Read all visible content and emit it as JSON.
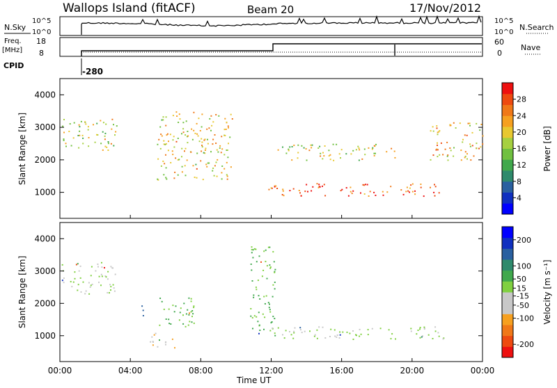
{
  "header": {
    "station": "Wallops Island (fitACF)",
    "beam": "Beam 20",
    "date": "17/Nov/2012"
  },
  "top_panels": {
    "nsky_label": "N.Sky",
    "nsky_ticks": [
      "10^5",
      "10^0"
    ],
    "nsearch_label": "N.Search",
    "nsearch_ticks": [
      "10^5",
      "10^0"
    ],
    "freq_label_1": "Freq.",
    "freq_label_2": "[MHz]",
    "freq_ticks": [
      "18",
      "8"
    ],
    "nave_label": "Nave",
    "nave_ticks": [
      "60",
      "0"
    ],
    "cpid_label": "CPID",
    "cpid_value": "-280"
  },
  "chart_data": [
    {
      "type": "heatmap",
      "title": "",
      "xlabel": "Time UT",
      "ylabel": "Slant Range [km]",
      "xlim_hours": [
        0,
        24
      ],
      "ylim": [
        200,
        4500
      ],
      "y_ticks": [
        "4000",
        "3000",
        "2000",
        "1000"
      ],
      "x_ticks": [
        "00:00",
        "04:00",
        "08:00",
        "12:00",
        "16:00",
        "20:00",
        "00:00"
      ],
      "colorbar_label": "Power [dB]",
      "colorbar_ticks": [
        "28",
        "24",
        "20",
        "16",
        "12",
        "8",
        "4"
      ],
      "colorbar_range": [
        0,
        32
      ],
      "colorscale": [
        "#0000ff",
        "#1030c0",
        "#2a60a0",
        "#2e8a6c",
        "#40a84c",
        "#70c040",
        "#a6d040",
        "#e8c830",
        "#f6a020",
        "#f07818",
        "#ee4a10",
        "#ee1010"
      ],
      "echo_regions": [
        {
          "t0": 0.1,
          "t1": 3.2,
          "r0": 2300,
          "r1": 3300,
          "power": 18
        },
        {
          "t0": 5.5,
          "t1": 9.8,
          "r0": 1400,
          "r1": 3500,
          "power": 20
        },
        {
          "t0": 11.8,
          "t1": 21.8,
          "r0": 900,
          "r1": 1300,
          "power": 28
        },
        {
          "t0": 12.2,
          "t1": 19.0,
          "r0": 2000,
          "r1": 2500,
          "power": 18
        },
        {
          "t0": 21.0,
          "t1": 24.0,
          "r0": 2000,
          "r1": 3200,
          "power": 22
        }
      ]
    },
    {
      "type": "heatmap",
      "title": "",
      "xlabel": "Time UT",
      "ylabel": "Slant Range [km]",
      "xlim_hours": [
        0,
        24
      ],
      "ylim": [
        200,
        4500
      ],
      "y_ticks": [
        "4000",
        "3000",
        "2000",
        "1000"
      ],
      "x_ticks": [
        "00:00",
        "04:00",
        "08:00",
        "12:00",
        "16:00",
        "20:00",
        "00:00"
      ],
      "colorbar_label": "Velocity [m s⁻¹]",
      "colorbar_ticks": [
        "200",
        "100",
        "50",
        "15",
        "-15",
        "-50",
        "-100",
        "-200"
      ],
      "colorbar_range": [
        -250,
        250
      ],
      "colorscale": [
        "#ee1010",
        "#ee4a10",
        "#f07818",
        "#f6a020",
        "#c8c8c8",
        "#c8c8c8",
        "#80d040",
        "#40a84c",
        "#2e8a6c",
        "#2a60a0",
        "#1030c0",
        "#0000ff"
      ],
      "echo_regions": [
        {
          "t0": 0.1,
          "t1": 3.2,
          "r0": 2300,
          "r1": 3300,
          "velocity": 0
        },
        {
          "t0": 4.5,
          "t1": 4.9,
          "r0": 1600,
          "r1": 2000,
          "velocity": 150
        },
        {
          "t0": 5.0,
          "t1": 6.5,
          "r0": 600,
          "r1": 1100,
          "velocity": -60
        },
        {
          "t0": 5.6,
          "t1": 7.8,
          "r0": 1300,
          "r1": 2200,
          "velocity": 40
        },
        {
          "t0": 10.8,
          "t1": 12.2,
          "r0": 1000,
          "r1": 3800,
          "velocity": 40
        },
        {
          "t0": 12.0,
          "t1": 21.8,
          "r0": 900,
          "r1": 1300,
          "velocity": 0
        }
      ]
    }
  ]
}
